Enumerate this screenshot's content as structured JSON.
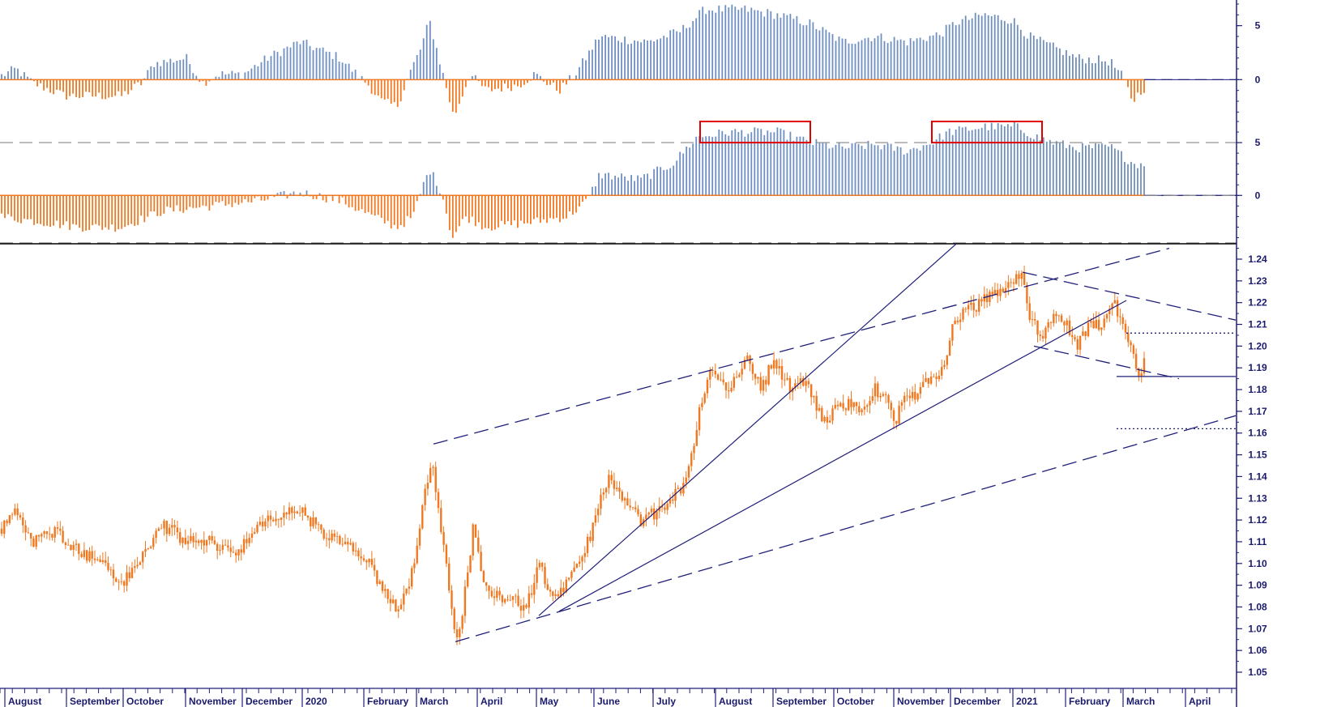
{
  "chart_data": {
    "type": "candlestick",
    "months": [
      "August",
      "September",
      "October",
      "November",
      "December",
      "2020",
      "February",
      "March",
      "April",
      "May",
      "June",
      "July",
      "August",
      "September",
      "October",
      "November",
      "December",
      "2021",
      "February",
      "March",
      "April"
    ],
    "colors": {
      "price": "#f07820",
      "pos": "#6f8fc0",
      "neg": "#f07820",
      "line": "#1f1f7a",
      "box": "#e00000",
      "grid": "#888888"
    },
    "panels": [
      {
        "id": "oscillator-1",
        "type": "bar",
        "ylim": [
          -3.5,
          7
        ],
        "tick_labels": [
          "5",
          "0"
        ],
        "tick_values": [
          5,
          0
        ],
        "knots": [
          [
            0,
            0.3
          ],
          [
            20,
            1
          ],
          [
            40,
            -0.3
          ],
          [
            80,
            -1.5
          ],
          [
            150,
            -1.5
          ],
          [
            175,
            -0.3
          ],
          [
            190,
            1.5
          ],
          [
            230,
            2
          ],
          [
            250,
            -0.3
          ],
          [
            270,
            0.5
          ],
          [
            300,
            0.5
          ],
          [
            330,
            2
          ],
          [
            370,
            3.5
          ],
          [
            420,
            2
          ],
          [
            440,
            0.5
          ],
          [
            455,
            -0.5
          ],
          [
            470,
            -2
          ],
          [
            490,
            -2.5
          ],
          [
            505,
            0.5
          ],
          [
            520,
            3
          ],
          [
            530,
            5.5
          ],
          [
            545,
            1
          ],
          [
            560,
            -3.5
          ],
          [
            580,
            0.5
          ],
          [
            600,
            -1
          ],
          [
            640,
            -0.5
          ],
          [
            660,
            0.5
          ],
          [
            690,
            -1
          ],
          [
            710,
            0.5
          ],
          [
            740,
            4
          ],
          [
            800,
            3.5
          ],
          [
            840,
            4.5
          ],
          [
            870,
            6.5
          ],
          [
            920,
            6.5
          ],
          [
            960,
            6
          ],
          [
            1000,
            5.2
          ],
          [
            1040,
            3.5
          ],
          [
            1080,
            4
          ],
          [
            1120,
            3.5
          ],
          [
            1160,
            4.2
          ],
          [
            1180,
            5.3
          ],
          [
            1215,
            6
          ],
          [
            1250,
            5.5
          ],
          [
            1270,
            4
          ],
          [
            1300,
            3
          ],
          [
            1330,
            2
          ],
          [
            1370,
            1.7
          ],
          [
            1385,
            0.3
          ],
          [
            1398,
            -2
          ],
          [
            1410,
            -0.8
          ]
        ]
      },
      {
        "id": "oscillator-2",
        "type": "bar",
        "ylim": [
          -4.5,
          7
        ],
        "tick_labels": [
          "5",
          "0"
        ],
        "tick_values": [
          5,
          0
        ],
        "reference_lines": [
          5,
          0,
          -4.5
        ],
        "knots": [
          [
            0,
            -2
          ],
          [
            50,
            -2.5
          ],
          [
            100,
            -3
          ],
          [
            150,
            -3
          ],
          [
            200,
            -1.5
          ],
          [
            260,
            -1
          ],
          [
            320,
            -0.5
          ],
          [
            370,
            0.3
          ],
          [
            420,
            -0.5
          ],
          [
            460,
            -2
          ],
          [
            490,
            -3
          ],
          [
            510,
            -2
          ],
          [
            520,
            0.5
          ],
          [
            530,
            2.5
          ],
          [
            545,
            0.3
          ],
          [
            558,
            -4
          ],
          [
            575,
            -2
          ],
          [
            600,
            -3
          ],
          [
            660,
            -2.5
          ],
          [
            700,
            -2
          ],
          [
            725,
            -0.5
          ],
          [
            740,
            2
          ],
          [
            790,
            1.5
          ],
          [
            830,
            3
          ],
          [
            860,
            5.5
          ],
          [
            900,
            6
          ],
          [
            960,
            6
          ],
          [
            1000,
            5
          ],
          [
            1040,
            4.5
          ],
          [
            1080,
            4.8
          ],
          [
            1120,
            4.2
          ],
          [
            1150,
            5
          ],
          [
            1170,
            6
          ],
          [
            1215,
            6.5
          ],
          [
            1255,
            6.5
          ],
          [
            1280,
            5.5
          ],
          [
            1300,
            5
          ],
          [
            1330,
            4.5
          ],
          [
            1370,
            4.6
          ],
          [
            1390,
            3.5
          ],
          [
            1400,
            3
          ],
          [
            1410,
            3
          ]
        ],
        "highlight_boxes": [
          {
            "from": 864,
            "to": 1000,
            "y_low": 5,
            "y_high": 7
          },
          {
            "from": 1150,
            "to": 1286,
            "y_low": 5,
            "y_high": 7
          }
        ]
      },
      {
        "id": "price",
        "type": "candlestick",
        "ylim": [
          1.05,
          1.24
        ],
        "tick_labels": [
          "1.24",
          "1.23",
          "1.22",
          "1.21",
          "1.20",
          "1.19",
          "1.18",
          "1.17",
          "1.16",
          "1.15",
          "1.14",
          "1.13",
          "1.12",
          "1.11",
          "1.10",
          "1.09",
          "1.08",
          "1.07",
          "1.06",
          "1.05"
        ],
        "tick_values": [
          1.24,
          1.23,
          1.22,
          1.21,
          1.2,
          1.19,
          1.18,
          1.17,
          1.16,
          1.15,
          1.14,
          1.13,
          1.12,
          1.11,
          1.1,
          1.09,
          1.08,
          1.07,
          1.06,
          1.05
        ],
        "knots": [
          [
            0,
            1.115
          ],
          [
            20,
            1.125
          ],
          [
            40,
            1.11
          ],
          [
            70,
            1.115
          ],
          [
            100,
            1.105
          ],
          [
            130,
            1.1
          ],
          [
            150,
            1.09
          ],
          [
            170,
            1.1
          ],
          [
            200,
            1.118
          ],
          [
            230,
            1.11
          ],
          [
            260,
            1.11
          ],
          [
            290,
            1.105
          ],
          [
            330,
            1.12
          ],
          [
            370,
            1.125
          ],
          [
            400,
            1.113
          ],
          [
            430,
            1.108
          ],
          [
            455,
            1.1
          ],
          [
            470,
            1.088
          ],
          [
            490,
            1.08
          ],
          [
            505,
            1.09
          ],
          [
            515,
            1.11
          ],
          [
            525,
            1.135
          ],
          [
            533,
            1.148
          ],
          [
            540,
            1.13
          ],
          [
            550,
            1.1
          ],
          [
            560,
            1.07
          ],
          [
            567,
            1.068
          ],
          [
            575,
            1.09
          ],
          [
            585,
            1.12
          ],
          [
            595,
            1.09
          ],
          [
            620,
            1.085
          ],
          [
            650,
            1.08
          ],
          [
            665,
            1.1
          ],
          [
            680,
            1.085
          ],
          [
            700,
            1.09
          ],
          [
            715,
            1.1
          ],
          [
            730,
            1.115
          ],
          [
            750,
            1.14
          ],
          [
            770,
            1.128
          ],
          [
            790,
            1.12
          ],
          [
            820,
            1.125
          ],
          [
            840,
            1.135
          ],
          [
            855,
            1.15
          ],
          [
            865,
            1.175
          ],
          [
            880,
            1.19
          ],
          [
            900,
            1.18
          ],
          [
            920,
            1.195
          ],
          [
            940,
            1.18
          ],
          [
            955,
            1.195
          ],
          [
            975,
            1.18
          ],
          [
            990,
            1.185
          ],
          [
            1005,
            1.175
          ],
          [
            1015,
            1.165
          ],
          [
            1030,
            1.17
          ],
          [
            1050,
            1.175
          ],
          [
            1070,
            1.17
          ],
          [
            1080,
            1.18
          ],
          [
            1095,
            1.175
          ],
          [
            1105,
            1.163
          ],
          [
            1115,
            1.18
          ],
          [
            1130,
            1.178
          ],
          [
            1150,
            1.185
          ],
          [
            1165,
            1.19
          ],
          [
            1175,
            1.21
          ],
          [
            1190,
            1.215
          ],
          [
            1210,
            1.22
          ],
          [
            1230,
            1.225
          ],
          [
            1250,
            1.23
          ],
          [
            1260,
            1.233
          ],
          [
            1270,
            1.215
          ],
          [
            1285,
            1.205
          ],
          [
            1300,
            1.215
          ],
          [
            1315,
            1.21
          ],
          [
            1330,
            1.2
          ],
          [
            1345,
            1.21
          ],
          [
            1360,
            1.21
          ],
          [
            1375,
            1.22
          ],
          [
            1385,
            1.21
          ],
          [
            1395,
            1.2
          ],
          [
            1405,
            1.185
          ],
          [
            1412,
            1.195
          ]
        ],
        "lines": [
          {
            "style": "dash",
            "x1": 535,
            "y1": 1.155,
            "x2": 1443,
            "y2": 1.245
          },
          {
            "style": "dash",
            "x1": 562,
            "y1": 1.064,
            "x2": 1525,
            "y2": 1.168
          },
          {
            "style": "dash",
            "x1": 1262,
            "y1": 1.234,
            "x2": 1525,
            "y2": 1.212
          },
          {
            "style": "dash",
            "x1": 1276,
            "y1": 1.2,
            "x2": 1455,
            "y2": 1.185
          },
          {
            "style": "solid",
            "x1": 665,
            "y1": 1.076,
            "x2": 1180,
            "y2": 1.247
          },
          {
            "style": "solid",
            "x1": 690,
            "y1": 1.078,
            "x2": 1390,
            "y2": 1.221
          },
          {
            "style": "solid",
            "x1": 1378,
            "y1": 1.186,
            "x2": 1525,
            "y2": 1.186
          },
          {
            "style": "dot",
            "x1": 1390,
            "y1": 1.206,
            "x2": 1525,
            "y2": 1.206
          },
          {
            "style": "dot",
            "x1": 1378,
            "y1": 1.162,
            "x2": 1525,
            "y2": 1.162
          }
        ]
      }
    ]
  }
}
